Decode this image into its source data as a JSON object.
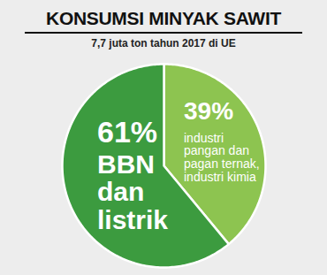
{
  "chart_data": {
    "type": "pie",
    "title": "KONSUMSI MINYAK SAWIT",
    "subtitle": "7,7 juta ton tahun 2017 di UE",
    "categories": [
      "industri pangan dan pagan ternak, industri kimia",
      "BBN dan listrik"
    ],
    "values": [
      39,
      61
    ],
    "value_labels": [
      "39%",
      "61%"
    ],
    "colors": [
      "#8dc450",
      "#3c9b3f"
    ],
    "data_labels": true,
    "legend": false
  }
}
